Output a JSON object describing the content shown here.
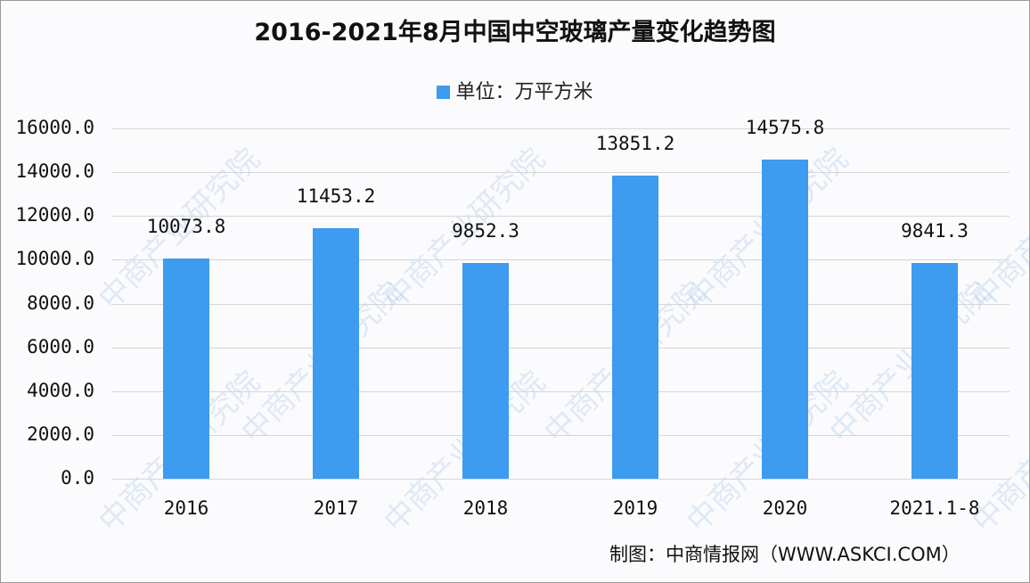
{
  "chart": {
    "title": "2016-2021年8月中国中空玻璃产量变化趋势图",
    "legend_label": "单位：万平方米",
    "source": "制图：中商情报网（WWW.ASKCI.COM）",
    "watermark": "中商产业研究院",
    "bar_color": "#3d9bf0"
  },
  "y_ticks": [
    "16000.0",
    "14000.0",
    "12000.0",
    "10000.0",
    "8000.0",
    "6000.0",
    "4000.0",
    "2000.0",
    "0.0"
  ],
  "chart_data": {
    "type": "bar",
    "title": "2016-2021年8月中国中空玻璃产量变化趋势图",
    "xlabel": "",
    "ylabel": "",
    "unit": "万平方米",
    "categories": [
      "2016",
      "2017",
      "2018",
      "2019",
      "2020",
      "2021.1-8"
    ],
    "series": [
      {
        "name": "单位：万平方米",
        "values": [
          10073.8,
          11453.2,
          9852.3,
          13851.2,
          14575.8,
          9841.3
        ]
      }
    ],
    "value_labels": [
      "10073.8",
      "11453.2",
      "9852.3",
      "13851.2",
      "14575.8",
      "9841.3"
    ],
    "ylim": [
      0,
      16000
    ],
    "yticks": [
      0,
      2000,
      4000,
      6000,
      8000,
      10000,
      12000,
      14000,
      16000
    ],
    "grid": true,
    "legend_position": "top"
  }
}
